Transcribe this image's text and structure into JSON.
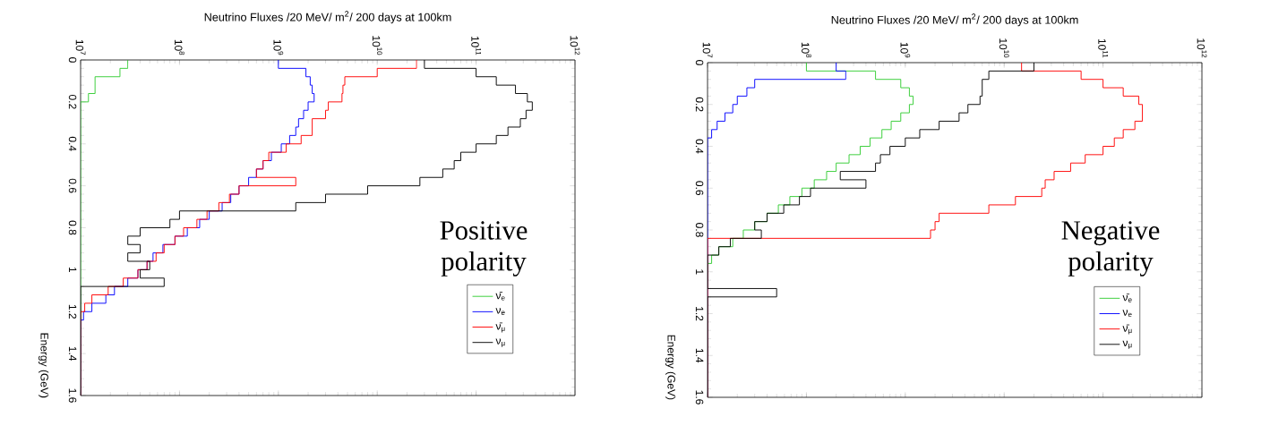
{
  "chart_data": [
    {
      "type": "histogram",
      "orientation": "horizontal",
      "log": "x",
      "title": "Neutrino Fluxes /20 MeV/ m$^{2}$/ 200 days at 100km",
      "ylabel": "Energy (GeV)",
      "annotations": [
        "Positive polarity"
      ],
      "legend": "bottom right",
      "bins": [
        0,
        0.04,
        0.08,
        0.12,
        0.16,
        0.2,
        0.24,
        0.28,
        0.32,
        0.36,
        0.4,
        0.44,
        0.48,
        0.52,
        0.56,
        0.6,
        0.64,
        0.68,
        0.72,
        0.76,
        0.8,
        0.84,
        0.88,
        0.92,
        0.96,
        1,
        1.04,
        1.08,
        1.12,
        1.16,
        1.2,
        1.24,
        1.28,
        1.32,
        1.36,
        1.4,
        1.44,
        1.48,
        1.52,
        1.56,
        1.6
      ],
      "xlim": [
        10000000.0,
        1000000000000.0
      ],
      "xticks": [
        {
          "value": 10000000.0,
          "label": "10$^{7}$"
        },
        {
          "value": 100000000.0,
          "label": "10$^{8}$"
        },
        {
          "value": 1000000000.0,
          "label": "10$^{9}$"
        },
        {
          "value": 10000000000.0,
          "label": "10$^{10}$"
        },
        {
          "value": 100000000000.0,
          "label": "10$^{11}$"
        },
        {
          "value": 1000000000000.0,
          "label": "10$^{12}$"
        }
      ],
      "ylim": [
        1.6,
        0
      ],
      "yticks": [
        0,
        0.2,
        0.4,
        0.6,
        0.8,
        1,
        1.2,
        1.4,
        1.6
      ],
      "series": [
        {
          "name": "ν̄$_{e}$",
          "color": "#33cc33",
          "values": [
            30000000.0,
            25000000.0,
            14000000.0,
            14000000.0,
            12000000.0,
            null,
            null,
            null,
            null,
            null,
            null,
            null,
            null,
            null,
            null,
            null,
            null,
            null,
            null,
            null,
            null,
            null,
            null,
            null,
            null,
            null,
            null,
            null,
            null,
            null,
            null,
            null,
            null,
            null,
            null,
            null,
            null,
            null,
            null,
            null
          ]
        },
        {
          "name": "ν$_{e}$",
          "color": "#0000ff",
          "values": [
            1000000000.0,
            1900000000.0,
            2100000000.0,
            2200000000.0,
            2300000000.0,
            2000000000.0,
            1800000000.0,
            1600000000.0,
            1500000000.0,
            1300000000.0,
            1070000000.0,
            850000000.0,
            700000000.0,
            600000000.0,
            500000000.0,
            400000000.0,
            330000000.0,
            270000000.0,
            200000000.0,
            160000000.0,
            120000000.0,
            90000000.0,
            68000000.0,
            54000000.0,
            47000000.0,
            38000000.0,
            30000000.0,
            22000000.0,
            18000000.0,
            13000000.0,
            10700000.0,
            null,
            null,
            null,
            null,
            null,
            null,
            null,
            null,
            null
          ]
        },
        {
          "name": "ν̄$_{μ}$",
          "color": "#ff0000",
          "values": [
            25000000000.0,
            10000000000.0,
            4700000000.0,
            4500000000.0,
            4400000000.0,
            3200000000.0,
            3000000000.0,
            2200000000.0,
            2200000000.0,
            1700000000.0,
            1200000000.0,
            800000000.0,
            700000000.0,
            600000000.0,
            1500000000.0,
            400000000.0,
            320000000.0,
            250000000.0,
            190000000.0,
            150000000.0,
            110000000.0,
            90000000.0,
            70000000.0,
            58000000.0,
            47000000.0,
            38000000.0,
            27000000.0,
            19000000.0,
            13000000.0,
            11000000.0,
            null,
            null,
            null,
            null,
            null,
            null,
            null,
            null,
            null,
            null
          ]
        },
        {
          "name": "ν$_{μ}$",
          "color": "#000000",
          "values": [
            30000000000.0,
            100000000000.0,
            160000000000.0,
            250000000000.0,
            330000000000.0,
            370000000000.0,
            320000000000.0,
            280000000000.0,
            210000000000.0,
            160000000000.0,
            100000000000.0,
            70000000000.0,
            60000000000.0,
            46000000000.0,
            27000000000.0,
            8000000000.0,
            3000000000.0,
            1500000000.0,
            100000000.0,
            80000000.0,
            40000000.0,
            30000000.0,
            40000000.0,
            30000000.0,
            50000000.0,
            40000000.0,
            70000000.0,
            null,
            null,
            null,
            null,
            null,
            null,
            null,
            null,
            null,
            null,
            null,
            null,
            null
          ]
        }
      ]
    },
    {
      "type": "histogram",
      "orientation": "horizontal",
      "log": "x",
      "title": "Neutrino Fluxes /20 MeV/ m$^{2}$/ 200 days at 100km",
      "ylabel": "Energy (GeV)",
      "annotations": [
        "Negative polarity"
      ],
      "legend": "bottom right",
      "bins": [
        0,
        0.04,
        0.08,
        0.12,
        0.16,
        0.2,
        0.24,
        0.28,
        0.32,
        0.36,
        0.4,
        0.44,
        0.48,
        0.52,
        0.56,
        0.6,
        0.64,
        0.68,
        0.72,
        0.76,
        0.8,
        0.84,
        0.88,
        0.92,
        0.96,
        1,
        1.04,
        1.08,
        1.12,
        1.16,
        1.2,
        1.24,
        1.28,
        1.32,
        1.36,
        1.4,
        1.44,
        1.48,
        1.52,
        1.56,
        1.6
      ],
      "xlim": [
        10000000.0,
        1000000000000.0
      ],
      "xticks": [
        {
          "value": 10000000.0,
          "label": "10$^{7}$"
        },
        {
          "value": 100000000.0,
          "label": "10$^{8}$"
        },
        {
          "value": 1000000000.0,
          "label": "10$^{9}$"
        },
        {
          "value": 10000000000.0,
          "label": "10$^{10}$"
        },
        {
          "value": 100000000000.0,
          "label": "10$^{11}$"
        },
        {
          "value": 1000000000000.0,
          "label": "10$^{12}$"
        }
      ],
      "ylim": [
        1.6,
        0
      ],
      "yticks": [
        0,
        0.2,
        0.4,
        0.6,
        0.8,
        1,
        1.2,
        1.4,
        1.6
      ],
      "series": [
        {
          "name": "ν̄$_{e}$",
          "color": "#33cc33",
          "values": [
            100000000.0,
            500000000.0,
            900000000.0,
            1100000000.0,
            1200000000.0,
            1100000000.0,
            900000000.0,
            720000000.0,
            580000000.0,
            440000000.0,
            350000000.0,
            270000000.0,
            200000000.0,
            160000000.0,
            120000000.0,
            90000000.0,
            68000000.0,
            52000000.0,
            40000000.0,
            30000000.0,
            23000000.0,
            18000000.0,
            13000000.0,
            11000000.0,
            null,
            null,
            null,
            null,
            null,
            null,
            null,
            null,
            null,
            null,
            null,
            null,
            null,
            null,
            null,
            null
          ]
        },
        {
          "name": "ν$_{e}$",
          "color": "#0000ff",
          "values": [
            200000000.0,
            250000000.0,
            30000000.0,
            25000000.0,
            20000000.0,
            18000000.0,
            15000000.0,
            12500000.0,
            11000000.0,
            null,
            null,
            null,
            null,
            null,
            null,
            null,
            null,
            null,
            null,
            null,
            null,
            null,
            null,
            null,
            null,
            null,
            null,
            null,
            null,
            null,
            null,
            null,
            null,
            null,
            null,
            null,
            null,
            null,
            null,
            null
          ]
        },
        {
          "name": "ν̄$_{μ}$",
          "color": "#ff0000",
          "values": [
            15000000000.0,
            60000000000.0,
            100000000000.0,
            160000000000.0,
            230000000000.0,
            250000000000.0,
            250000000000.0,
            210000000000.0,
            160000000000.0,
            130000000000.0,
            100000000000.0,
            66000000000.0,
            47000000000.0,
            32000000000.0,
            26000000000.0,
            24000000000.0,
            13000000000.0,
            7000000000.0,
            2200000000.0,
            2000000000.0,
            1800000000.0,
            null,
            null,
            null,
            null,
            null,
            null,
            null,
            null,
            null,
            null,
            null,
            null,
            null,
            null,
            null,
            null,
            null,
            null,
            null
          ]
        },
        {
          "name": "ν$_{μ}$",
          "color": "#000000",
          "values": [
            20000000000.0,
            7000000000.0,
            6000000000.0,
            6000000000.0,
            5700000000.0,
            4300000000.0,
            3500000000.0,
            2200000000.0,
            1400000000.0,
            1000000000.0,
            700000000.0,
            560000000.0,
            500000000.0,
            220000000.0,
            400000000.0,
            110000000.0,
            85000000.0,
            59000000.0,
            40000000.0,
            30000000.0,
            35000000.0,
            17000000.0,
            13000000.0,
            null,
            null,
            null,
            null,
            50000000.0,
            null,
            null,
            null,
            null,
            null,
            null,
            null,
            null,
            null,
            null,
            null,
            null
          ]
        }
      ]
    }
  ]
}
